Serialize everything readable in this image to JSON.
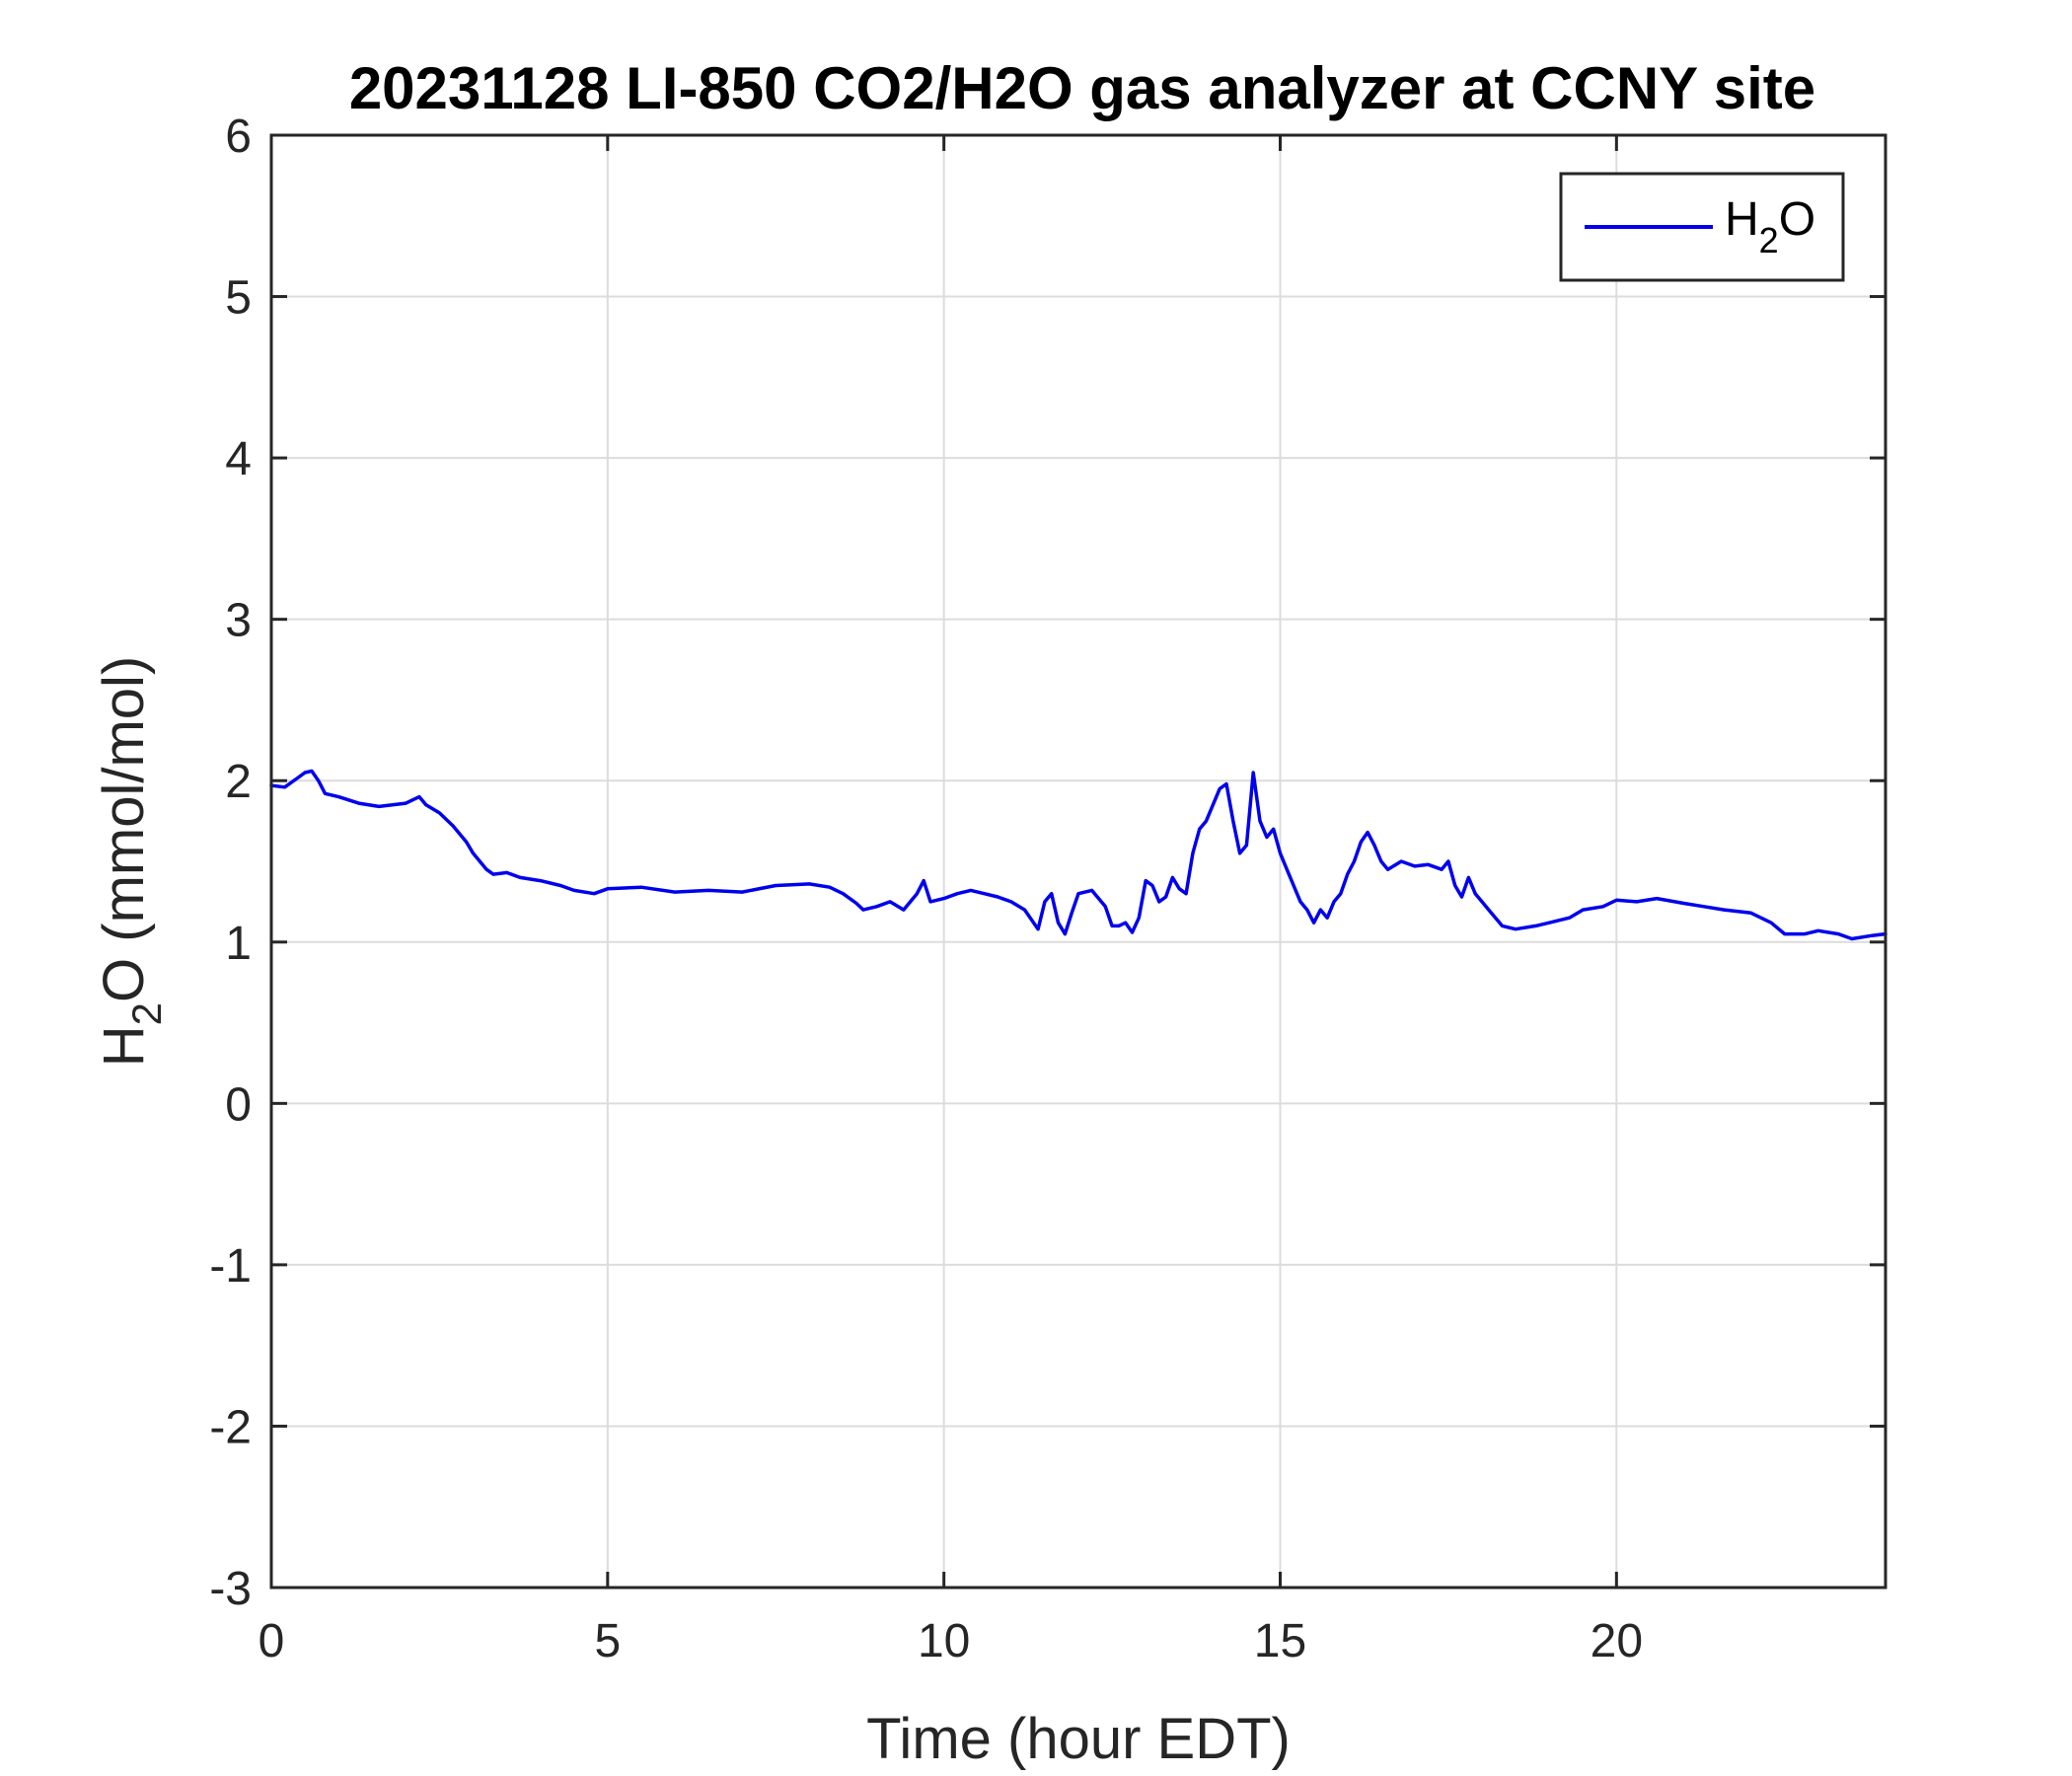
{
  "chart_data": {
    "type": "line",
    "title": "20231128 LI-850 CO2/H2O gas analyzer at CCNY site",
    "xlabel": "Time (hour EDT)",
    "ylabel": {
      "main": "H",
      "sub": "2",
      "rest": "O (mmol/mol)"
    },
    "xlim": [
      0,
      24
    ],
    "ylim": [
      -3,
      6
    ],
    "xticks": [
      0,
      5,
      10,
      15,
      20
    ],
    "yticks": [
      -3,
      -2,
      -1,
      0,
      1,
      2,
      3,
      4,
      5,
      6
    ],
    "grid": true,
    "legend_position": "top-right",
    "colors": {
      "series": "#0000ee",
      "axis": "#262626",
      "grid": "#dcdcdc"
    },
    "series": [
      {
        "legend": {
          "main": "H",
          "sub": "2",
          "rest": "O"
        },
        "x": [
          0,
          0.2,
          0.4,
          0.5,
          0.6,
          0.7,
          0.8,
          1.0,
          1.3,
          1.6,
          2.0,
          2.2,
          2.3,
          2.5,
          2.7,
          2.9,
          3.0,
          3.2,
          3.3,
          3.5,
          3.7,
          4.0,
          4.3,
          4.5,
          4.8,
          5.0,
          5.5,
          6.0,
          6.5,
          7.0,
          7.5,
          8.0,
          8.3,
          8.5,
          8.7,
          8.8,
          9.0,
          9.2,
          9.4,
          9.6,
          9.7,
          9.8,
          10.0,
          10.2,
          10.4,
          10.6,
          10.8,
          11.0,
          11.2,
          11.4,
          11.5,
          11.6,
          11.7,
          11.8,
          11.9,
          12.0,
          12.2,
          12.4,
          12.5,
          12.6,
          12.7,
          12.8,
          12.9,
          13.0,
          13.1,
          13.2,
          13.3,
          13.4,
          13.5,
          13.6,
          13.7,
          13.8,
          13.9,
          14.0,
          14.1,
          14.2,
          14.3,
          14.4,
          14.5,
          14.6,
          14.7,
          14.8,
          14.9,
          15.0,
          15.1,
          15.2,
          15.3,
          15.4,
          15.5,
          15.6,
          15.7,
          15.8,
          15.9,
          16.0,
          16.1,
          16.2,
          16.3,
          16.4,
          16.5,
          16.6,
          16.8,
          17.0,
          17.2,
          17.4,
          17.5,
          17.6,
          17.7,
          17.8,
          17.9,
          18.0,
          18.1,
          18.3,
          18.5,
          18.8,
          19.0,
          19.3,
          19.5,
          19.8,
          20.0,
          20.3,
          20.6,
          21.0,
          21.3,
          21.6,
          22.0,
          22.3,
          22.5,
          22.8,
          23.0,
          23.3,
          23.5,
          23.8,
          24.0
        ],
        "y": [
          1.97,
          1.96,
          2.02,
          2.05,
          2.06,
          2.0,
          1.92,
          1.9,
          1.86,
          1.84,
          1.86,
          1.9,
          1.85,
          1.8,
          1.72,
          1.62,
          1.55,
          1.45,
          1.42,
          1.43,
          1.4,
          1.38,
          1.35,
          1.32,
          1.3,
          1.33,
          1.34,
          1.31,
          1.32,
          1.31,
          1.35,
          1.36,
          1.34,
          1.3,
          1.24,
          1.2,
          1.22,
          1.25,
          1.2,
          1.3,
          1.38,
          1.25,
          1.27,
          1.3,
          1.32,
          1.3,
          1.28,
          1.25,
          1.2,
          1.08,
          1.25,
          1.3,
          1.12,
          1.05,
          1.18,
          1.3,
          1.32,
          1.22,
          1.1,
          1.1,
          1.12,
          1.06,
          1.15,
          1.38,
          1.35,
          1.25,
          1.28,
          1.4,
          1.33,
          1.3,
          1.55,
          1.7,
          1.75,
          1.85,
          1.95,
          1.98,
          1.75,
          1.55,
          1.6,
          2.05,
          1.75,
          1.65,
          1.7,
          1.55,
          1.45,
          1.35,
          1.25,
          1.2,
          1.12,
          1.2,
          1.15,
          1.25,
          1.3,
          1.42,
          1.5,
          1.62,
          1.68,
          1.6,
          1.5,
          1.45,
          1.5,
          1.47,
          1.48,
          1.45,
          1.5,
          1.35,
          1.28,
          1.4,
          1.3,
          1.25,
          1.2,
          1.1,
          1.08,
          1.1,
          1.12,
          1.15,
          1.2,
          1.22,
          1.26,
          1.25,
          1.27,
          1.24,
          1.22,
          1.2,
          1.18,
          1.12,
          1.05,
          1.05,
          1.07,
          1.05,
          1.02,
          1.04,
          1.05
        ]
      }
    ]
  }
}
